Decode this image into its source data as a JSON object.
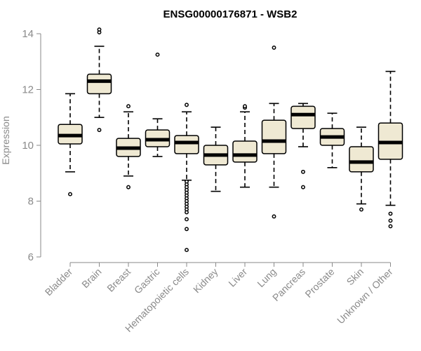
{
  "chart_data": {
    "type": "boxplot",
    "title": "ENSG00000176871 - WSB2",
    "xlabel": "",
    "ylabel": "Expression",
    "ylim": [
      6,
      14.3
    ],
    "yticks": [
      6,
      8,
      10,
      12,
      14
    ],
    "colors": {
      "box_fill": "#efe9d3",
      "stroke": "#000000",
      "axis": "#8a8a8a"
    },
    "categories": [
      "Bladder",
      "Brain",
      "Breast",
      "Gastric",
      "Hematopoietic cells",
      "Kidney",
      "Liver",
      "Lung",
      "Pancreas",
      "Prostate",
      "Skin",
      "Unknown / Other"
    ],
    "boxes": [
      {
        "name": "Bladder",
        "whisker_low": 9.05,
        "q1": 10.05,
        "median": 10.35,
        "q3": 10.75,
        "whisker_high": 11.85,
        "outliers": [
          8.25
        ]
      },
      {
        "name": "Brain",
        "whisker_low": 11.0,
        "q1": 11.85,
        "median": 12.3,
        "q3": 12.55,
        "whisker_high": 13.55,
        "outliers": [
          14.05,
          14.15,
          10.55
        ]
      },
      {
        "name": "Breast",
        "whisker_low": 8.9,
        "q1": 9.6,
        "median": 9.9,
        "q3": 10.25,
        "whisker_high": 11.2,
        "outliers": [
          11.4,
          8.5
        ]
      },
      {
        "name": "Gastric",
        "whisker_low": 9.6,
        "q1": 9.95,
        "median": 10.2,
        "q3": 10.55,
        "whisker_high": 10.95,
        "outliers": [
          13.25
        ]
      },
      {
        "name": "Hematopoietic cells",
        "whisker_low": 8.75,
        "q1": 9.7,
        "median": 10.1,
        "q3": 10.35,
        "whisker_high": 11.2,
        "outliers": [
          11.45,
          8.7,
          8.6,
          8.5,
          8.4,
          8.3,
          8.2,
          8.1,
          8.0,
          7.9,
          7.8,
          7.7,
          7.6,
          7.35,
          7.0,
          6.25
        ]
      },
      {
        "name": "Kidney",
        "whisker_low": 8.35,
        "q1": 9.3,
        "median": 9.65,
        "q3": 10.0,
        "whisker_high": 10.65,
        "outliers": []
      },
      {
        "name": "Liver",
        "whisker_low": 8.5,
        "q1": 9.4,
        "median": 9.65,
        "q3": 10.15,
        "whisker_high": 11.2,
        "outliers": [
          11.35,
          11.4
        ]
      },
      {
        "name": "Lung",
        "whisker_low": 8.5,
        "q1": 9.7,
        "median": 10.15,
        "q3": 10.9,
        "whisker_high": 11.5,
        "outliers": [
          13.5,
          7.45
        ]
      },
      {
        "name": "Pancreas",
        "whisker_low": 9.95,
        "q1": 10.6,
        "median": 11.1,
        "q3": 11.4,
        "whisker_high": 11.5,
        "outliers": [
          9.05,
          8.5
        ]
      },
      {
        "name": "Prostate",
        "whisker_low": 9.2,
        "q1": 10.0,
        "median": 10.3,
        "q3": 10.6,
        "whisker_high": 11.15,
        "outliers": []
      },
      {
        "name": "Skin",
        "whisker_low": 7.9,
        "q1": 9.05,
        "median": 9.4,
        "q3": 9.95,
        "whisker_high": 10.65,
        "outliers": [
          7.7
        ]
      },
      {
        "name": "Unknown / Other",
        "whisker_low": 7.85,
        "q1": 9.5,
        "median": 10.1,
        "q3": 10.8,
        "whisker_high": 12.65,
        "outliers": [
          7.55,
          7.3,
          7.1
        ]
      }
    ]
  }
}
